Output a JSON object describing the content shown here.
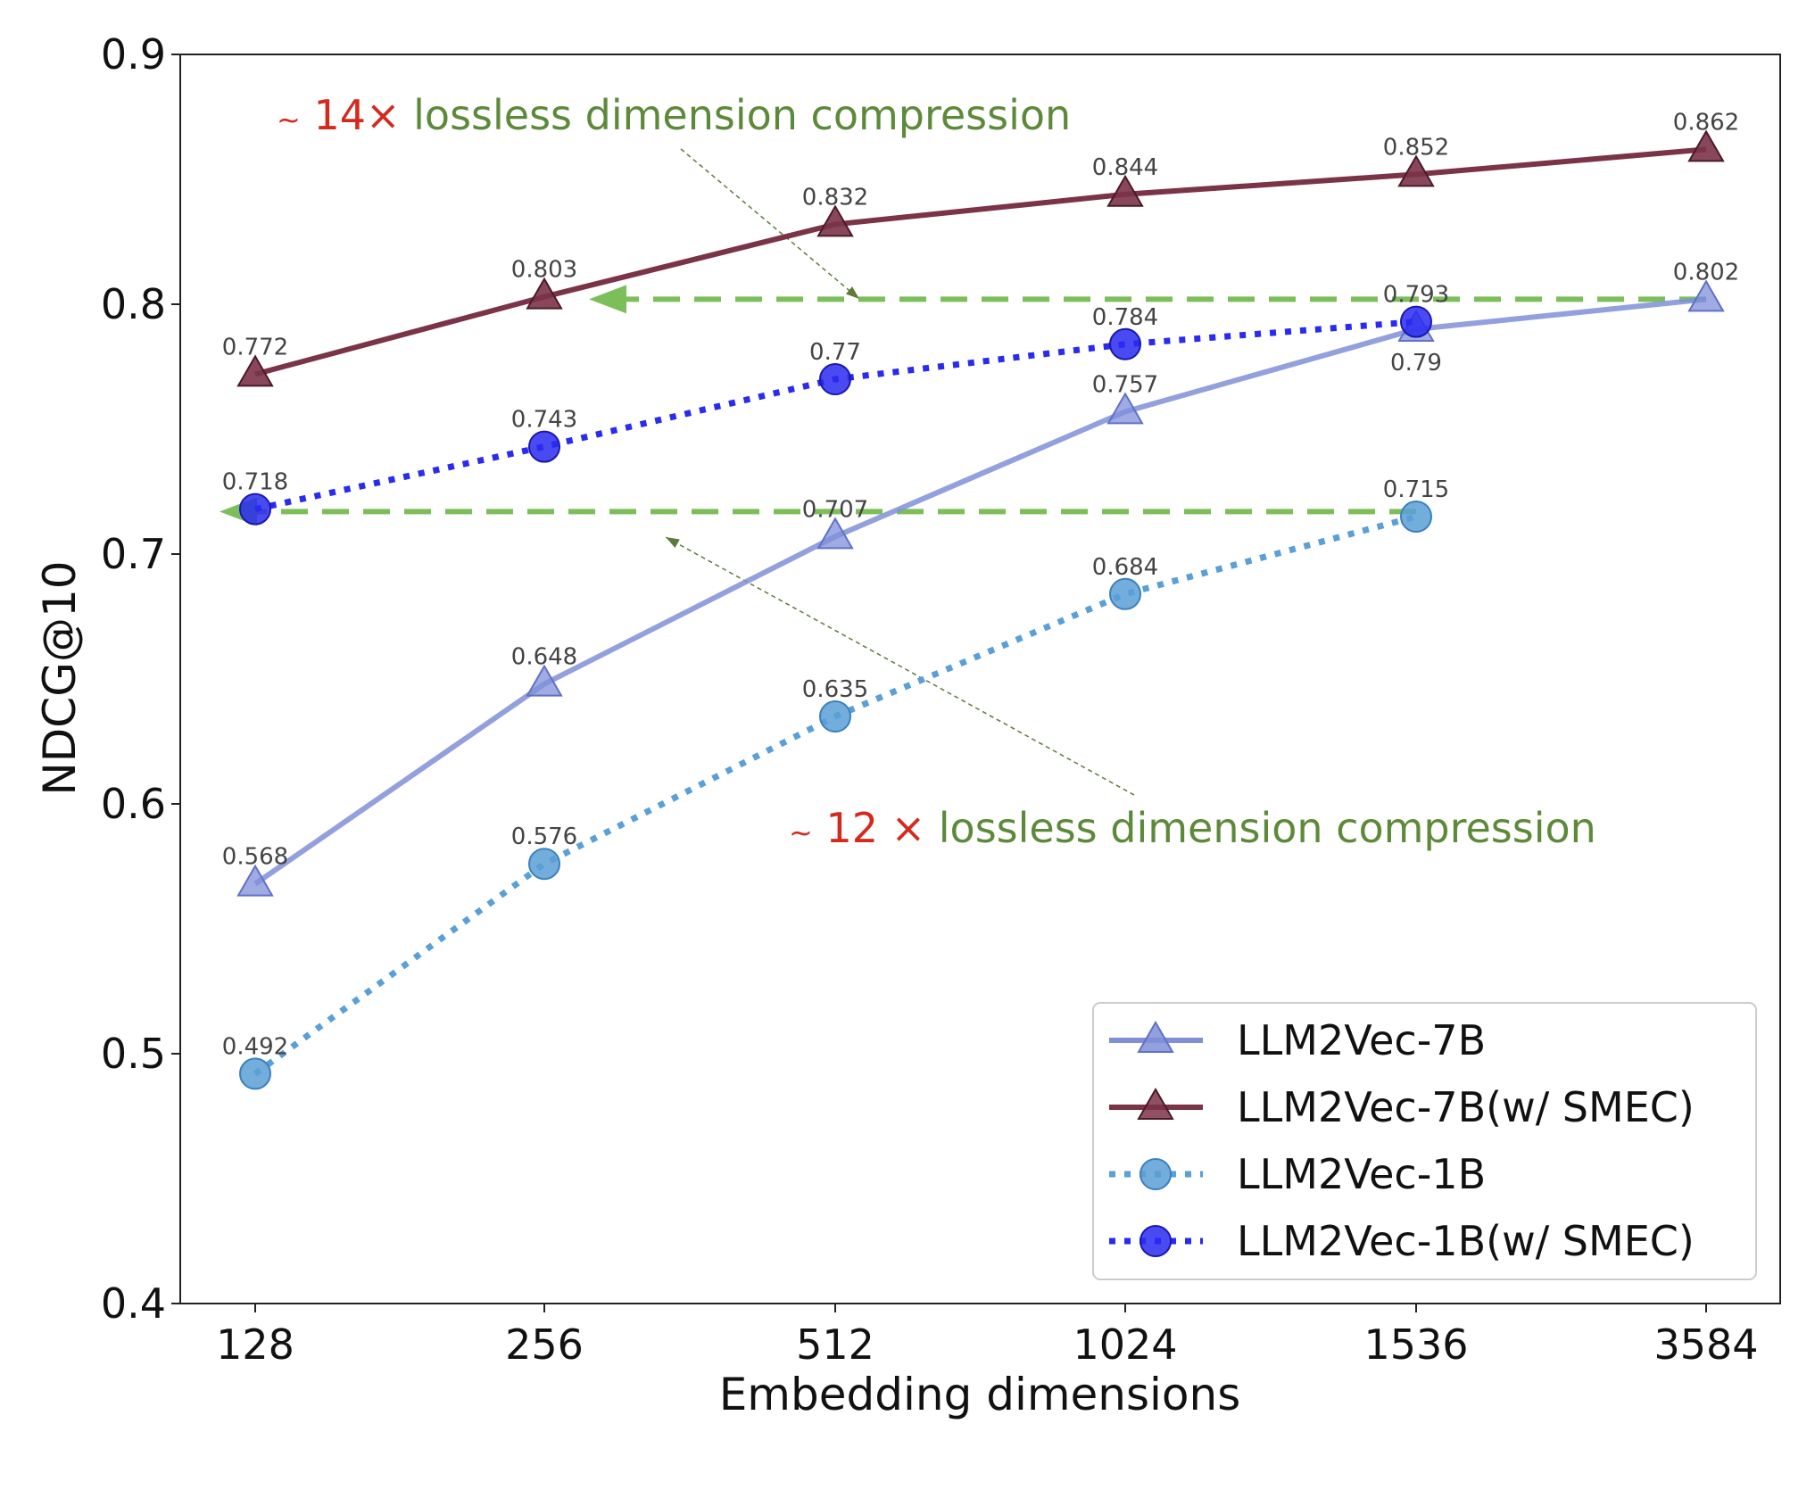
{
  "chart_data": {
    "type": "line",
    "xlabel": "Embedding dimensions",
    "ylabel": "NDCG@10",
    "categories": [
      "128",
      "256",
      "512",
      "1024",
      "1536",
      "3584"
    ],
    "ylim": [
      0.4,
      0.9
    ],
    "yticks": [
      "0.4",
      "0.5",
      "0.6",
      "0.7",
      "0.8",
      "0.9"
    ],
    "grid": false,
    "legend_position": "bottom-right",
    "series": [
      {
        "name": "LLM2Vec-7B",
        "marker": "triangle",
        "linestyle": "solid",
        "color": "#7f8fd8",
        "values": [
          0.568,
          0.648,
          0.707,
          0.757,
          0.79,
          0.802
        ],
        "labels": [
          "0.568",
          "0.648",
          "0.707",
          "0.757",
          "0.79",
          "0.802"
        ]
      },
      {
        "name": "LLM2Vec-7B(w/ SMEC)",
        "marker": "triangle",
        "linestyle": "solid",
        "color": "#7b3348",
        "values": [
          0.772,
          0.803,
          0.832,
          0.844,
          0.852,
          0.862
        ],
        "labels": [
          "0.772",
          "0.803",
          "0.832",
          "0.844",
          "0.852",
          "0.862"
        ]
      },
      {
        "name": "LLM2Vec-1B",
        "marker": "circle",
        "linestyle": "dotted",
        "color": "#5a9fd6",
        "values": [
          0.492,
          0.576,
          0.635,
          0.684,
          0.715,
          null
        ],
        "labels": [
          "0.492",
          "0.576",
          "0.635",
          "0.684",
          "0.715",
          ""
        ]
      },
      {
        "name": "LLM2Vec-1B(w/ SMEC)",
        "marker": "circle",
        "linestyle": "dotted",
        "color": "#2a2af0",
        "values": [
          0.718,
          0.743,
          0.77,
          0.784,
          0.793,
          null
        ],
        "labels": [
          "0.718",
          "0.743",
          "0.77",
          "0.784",
          "0.793",
          ""
        ]
      }
    ],
    "annotations": [
      {
        "prefix": "~",
        "factor": "14×",
        "text": "lossless dimension compression",
        "level": 0.802,
        "from": "3584",
        "to": "256"
      },
      {
        "prefix": "~",
        "factor": "12 ×",
        "text": "lossless dimension compression",
        "level": 0.717,
        "from": "1536",
        "to": "128"
      }
    ],
    "colors": {
      "annotation_factor": "#d42a1e",
      "annotation_text": "#5d8a3a",
      "arrow": "#7cbf5a",
      "pointer": "#5d7a3a"
    }
  }
}
